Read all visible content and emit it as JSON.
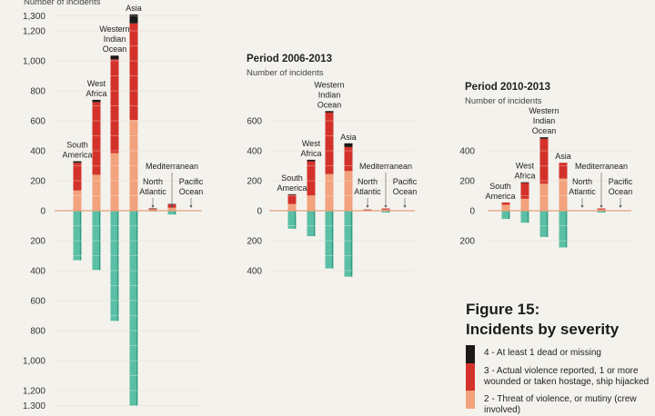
{
  "colors": {
    "background": "#f4f2ec",
    "sev4": "#1b1a18",
    "sev3": "#d3322a",
    "sev2": "#f2a27c",
    "sev1": "#5bbfa5",
    "baseline": "#e7a07d",
    "grid": "#e8e5dd"
  },
  "legend": {
    "title_line1": "Figure 15:",
    "title_line2": "Incidents by severity",
    "items": [
      {
        "label": "4 - At least 1 dead or missing",
        "color": "#1b1a18"
      },
      {
        "label": "3 - Actual violence reported, 1 or more wounded or taken hostage, ship hijacked",
        "color": "#d3322a"
      },
      {
        "label": "2 - Threat of violence, or mutiny (crew involved)",
        "color": "#f2a27c"
      }
    ]
  },
  "chart_data": [
    {
      "type": "bar",
      "title": "",
      "ylabel": "Number of incidents",
      "yticks_up": [
        "1,300",
        "1,200",
        "1,000",
        "800",
        "600",
        "400",
        "200",
        "0"
      ],
      "ytick_values_up": [
        1300,
        1200,
        1000,
        800,
        600,
        400,
        200,
        0
      ],
      "yticks_down": [
        "200",
        "400",
        "600",
        "800",
        "1,000",
        "1,200",
        "1,300"
      ],
      "ytick_values_down": [
        200,
        400,
        600,
        800,
        1000,
        1200,
        1300
      ],
      "categories": [
        [
          "South",
          "America"
        ],
        [
          "West",
          "Africa"
        ],
        [
          "Western",
          "Indian",
          "Ocean"
        ],
        [
          "Asia"
        ],
        [
          "North",
          "Atlantic"
        ],
        [
          "Mediterranean"
        ],
        [
          "Pacific",
          "Ocean"
        ]
      ],
      "series": [
        {
          "name": "2 - Threat of violence, or mutiny (crew involved)",
          "values": [
            135,
            240,
            385,
            605,
            8,
            20,
            1
          ]
        },
        {
          "name": "3 - Actual violence reported, 1 or more wounded or taken hostage, ship hijacked",
          "values": [
            185,
            485,
            625,
            645,
            6,
            22,
            1
          ]
        },
        {
          "name": "4 - At least 1 dead or missing",
          "values": [
            10,
            15,
            25,
            60,
            2,
            3,
            0
          ]
        },
        {
          "values": [
            -330,
            -395,
            -735,
            -1300,
            -5,
            -25,
            -2
          ]
        }
      ]
    },
    {
      "type": "bar",
      "title": "Period 2006-2013",
      "ylabel": "Number of incidents",
      "yticks_up": [
        "600",
        "400",
        "200",
        "0"
      ],
      "ytick_values_up": [
        600,
        400,
        200,
        0
      ],
      "yticks_down": [
        "200",
        "400"
      ],
      "ytick_values_down": [
        200,
        400
      ],
      "categories": [
        [
          "South",
          "America"
        ],
        [
          "West",
          "Africa"
        ],
        [
          "Western",
          "Indian",
          "Ocean"
        ],
        [
          "Asia"
        ],
        [
          "North",
          "Atlantic"
        ],
        [
          "Mediterranean"
        ],
        [
          "Pacific",
          "Ocean"
        ]
      ],
      "series": [
        {
          "name": "2 - Threat of violence, or mutiny (crew involved)",
          "values": [
            45,
            100,
            245,
            265,
            3,
            8,
            1
          ]
        },
        {
          "name": "3 - Actual violence reported, 1 or more wounded or taken hostage, ship hijacked",
          "values": [
            60,
            230,
            410,
            160,
            4,
            7,
            1
          ]
        },
        {
          "name": "4 - At least 1 dead or missing",
          "values": [
            5,
            10,
            10,
            25,
            1,
            0,
            0
          ]
        },
        {
          "values": [
            -120,
            -170,
            -385,
            -440,
            -2,
            -12,
            -1
          ]
        }
      ]
    },
    {
      "type": "bar",
      "title": "Period 2010-2013",
      "ylabel": "Number of incidents",
      "yticks_up": [
        "400",
        "200",
        "0"
      ],
      "ytick_values_up": [
        400,
        200,
        0
      ],
      "yticks_down": [
        "200"
      ],
      "ytick_values_down": [
        200
      ],
      "categories": [
        [
          "South",
          "America"
        ],
        [
          "West",
          "Africa"
        ],
        [
          "Western",
          "Indian",
          "Ocean"
        ],
        [
          "Asia"
        ],
        [
          "North",
          "Atlantic"
        ],
        [
          "Mediterranean"
        ],
        [
          "Pacific",
          "Ocean"
        ]
      ],
      "series": [
        {
          "name": "2 - Threat of violence, or mutiny (crew involved)",
          "values": [
            40,
            80,
            180,
            215,
            0,
            8,
            0
          ]
        },
        {
          "name": "3 - Actual violence reported, 1 or more wounded or taken hostage, ship hijacked",
          "values": [
            15,
            105,
            300,
            105,
            0,
            7,
            0
          ]
        },
        {
          "name": "4 - At least 1 dead or missing",
          "values": [
            0,
            5,
            10,
            0,
            0,
            0,
            0
          ]
        },
        {
          "values": [
            -55,
            -80,
            -175,
            -245,
            0,
            -12,
            0
          ]
        }
      ]
    }
  ]
}
